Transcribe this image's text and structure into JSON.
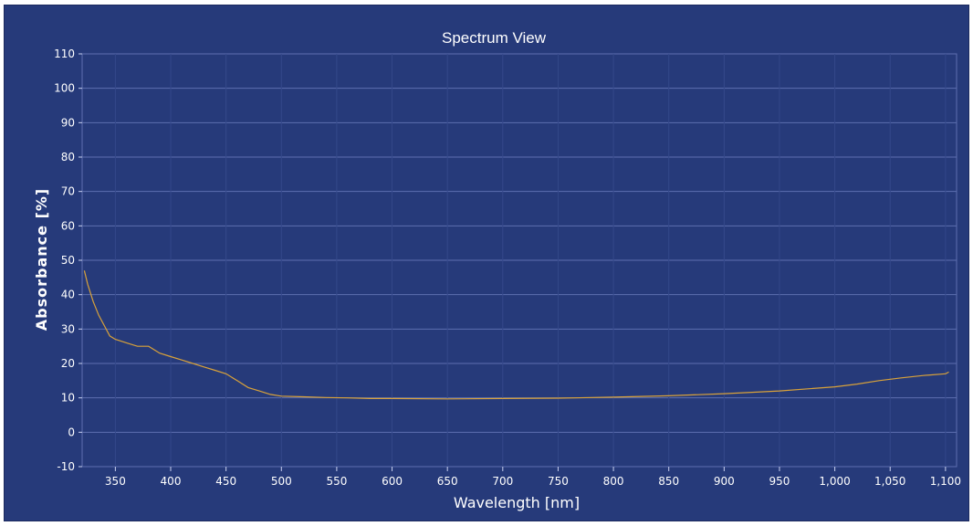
{
  "chart_data": {
    "type": "line",
    "title": "Spectrum View",
    "xlabel": "Wavelength [nm]",
    "ylabel": "Absorbance [%]",
    "xlim": [
      320,
      1110
    ],
    "ylim": [
      -10,
      110
    ],
    "x_ticks": [
      350,
      400,
      450,
      500,
      550,
      600,
      650,
      700,
      750,
      800,
      850,
      900,
      950,
      1000,
      1050,
      1100
    ],
    "x_tick_labels": [
      "350",
      "400",
      "450",
      "500",
      "550",
      "600",
      "650",
      "700",
      "750",
      "800",
      "850",
      "900",
      "950",
      "1,000",
      "1,050",
      "1,100"
    ],
    "y_ticks": [
      -10,
      0,
      10,
      20,
      30,
      40,
      50,
      60,
      70,
      80,
      90,
      100,
      110
    ],
    "y_tick_labels": [
      "-10",
      "0",
      "10",
      "20",
      "30",
      "40",
      "50",
      "60",
      "70",
      "80",
      "90",
      "100",
      "110"
    ],
    "grid": true,
    "series": [
      {
        "color": "#d9a23a",
        "x": [
          322,
          325,
          330,
          335,
          340,
          345,
          350,
          360,
          370,
          380,
          390,
          400,
          410,
          420,
          430,
          440,
          450,
          460,
          470,
          480,
          490,
          500,
          520,
          540,
          560,
          580,
          600,
          650,
          700,
          750,
          800,
          850,
          900,
          950,
          1000,
          1020,
          1040,
          1060,
          1080,
          1100,
          1103
        ],
        "y": [
          47,
          43,
          38,
          34,
          31,
          28,
          27,
          26,
          25,
          25,
          23,
          22,
          21,
          20,
          19,
          18,
          17,
          15,
          13,
          12,
          11,
          10.5,
          10.3,
          10.1,
          10,
          9.8,
          9.8,
          9.7,
          9.8,
          9.9,
          10.2,
          10.6,
          11.2,
          12,
          13.2,
          14,
          15,
          15.8,
          16.5,
          17,
          17.5
        ]
      }
    ]
  }
}
